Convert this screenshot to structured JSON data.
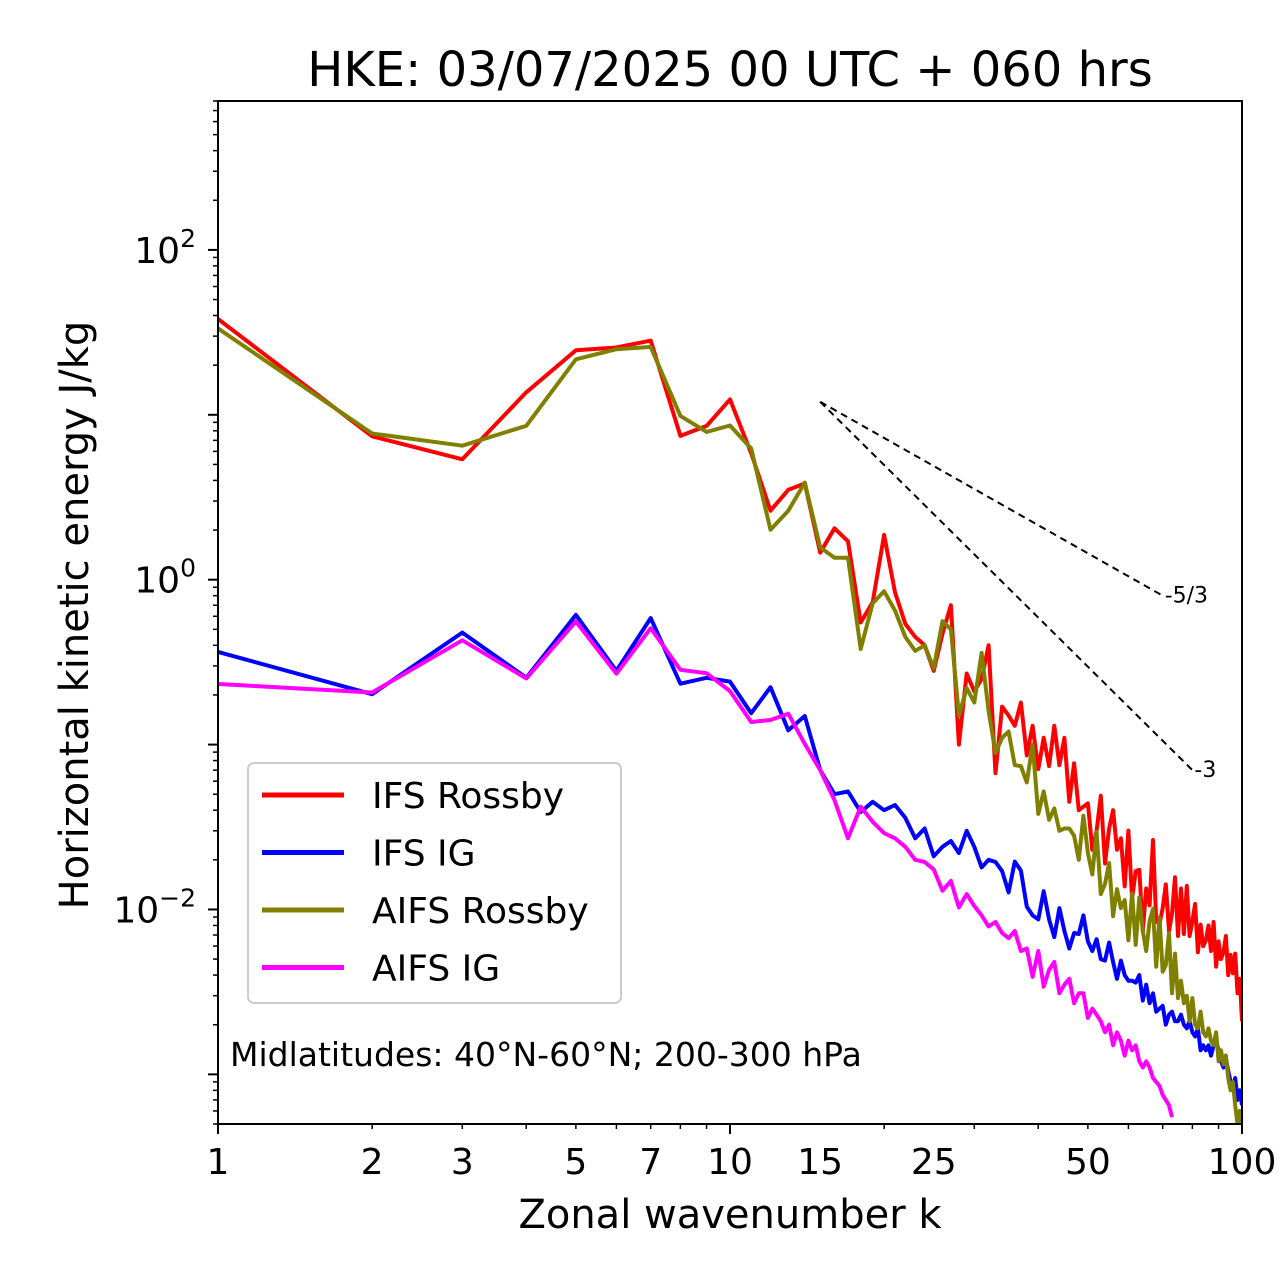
{
  "chart_data": {
    "type": "line",
    "title": "HKE: 03/07/2025 00 UTC + 060 hrs",
    "xlabel": "Zonal wavenumber k",
    "ylabel": "Horizontal kinetic energy J/kg",
    "x_scale": "log",
    "y_scale": "log",
    "xlim": [
      1,
      100
    ],
    "ylim": [
      0.0005,
      800
    ],
    "x_ticks": [
      {
        "value": 1,
        "label": "1"
      },
      {
        "value": 2,
        "label": "2"
      },
      {
        "value": 3,
        "label": "3"
      },
      {
        "value": 5,
        "label": "5"
      },
      {
        "value": 7,
        "label": "7"
      },
      {
        "value": 10,
        "label": "10"
      },
      {
        "value": 15,
        "label": "15"
      },
      {
        "value": 25,
        "label": "25"
      },
      {
        "value": 50,
        "label": "50"
      },
      {
        "value": 100,
        "label": "100"
      }
    ],
    "y_ticks": [
      {
        "value": 0.01,
        "base": "10",
        "exp": "−2"
      },
      {
        "value": 1,
        "base": "10",
        "exp": "0"
      },
      {
        "value": 100,
        "base": "10",
        "exp": "2"
      }
    ],
    "annotation": "Midlatitudes: 40°N-60°N; 200-300 hPa",
    "legend_position": "lower-left",
    "grid": false,
    "reference_slopes": [
      {
        "label": "-5/3",
        "x": [
          15,
          70
        ],
        "y": [
          12.0,
          0.8
        ]
      },
      {
        "label": "-3",
        "x": [
          15,
          80
        ],
        "y": [
          12.0,
          0.07
        ]
      }
    ],
    "series": [
      {
        "name": "IFS Rossby",
        "color": "#ff0000",
        "x": [
          1,
          2,
          3,
          4,
          5,
          6,
          7,
          8,
          9,
          10,
          11,
          12,
          13,
          14,
          15,
          16,
          17,
          18,
          19,
          20,
          21,
          22,
          23,
          24,
          25,
          26,
          27,
          28,
          29,
          30,
          31,
          32,
          33,
          34,
          35,
          36,
          37,
          38,
          39,
          40,
          41,
          42,
          43,
          44,
          45,
          46,
          47,
          48,
          49,
          50,
          51,
          52,
          53,
          54,
          55,
          56,
          57,
          58,
          59,
          60,
          61,
          62,
          63,
          64,
          65,
          66,
          67,
          68,
          69,
          70,
          71,
          72,
          73,
          74,
          75,
          76,
          77,
          78,
          79,
          80,
          81,
          82,
          83,
          84,
          85,
          86,
          87,
          88,
          89,
          90,
          91,
          92,
          93,
          94,
          95,
          96,
          97,
          98,
          99,
          100
        ],
        "y": [
          38.1,
          7.41,
          5.37,
          13.7,
          24.6,
          25.6,
          28.2,
          7.45,
          8.57,
          12.4,
          5.84,
          2.62,
          3.51,
          3.83,
          1.46,
          2.05,
          1.71,
          0.55,
          0.73,
          1.87,
          0.84,
          0.54,
          0.45,
          0.4,
          0.28,
          0.47,
          0.7,
          0.1,
          0.27,
          0.21,
          0.25,
          0.4,
          0.067,
          0.17,
          0.15,
          0.13,
          0.18,
          0.086,
          0.13,
          0.071,
          0.11,
          0.074,
          0.13,
          0.075,
          0.11,
          0.045,
          0.077,
          0.04,
          0.042,
          0.044,
          0.023,
          0.03,
          0.049,
          0.019,
          0.031,
          0.04,
          0.023,
          0.027,
          0.0138,
          0.0301,
          0.0116,
          0.0171,
          0.0174,
          0.0074,
          0.0134,
          0.0106,
          0.0264,
          0.0085,
          0.0082,
          0.0102,
          0.0142,
          0.0074,
          0.0094,
          0.0157,
          0.0069,
          0.0134,
          0.0071,
          0.0139,
          0.0069,
          0.0085,
          0.0108,
          0.0055,
          0.0081,
          0.006,
          0.0065,
          0.008,
          0.0056,
          0.0084,
          0.0045,
          0.0064,
          0.005,
          0.0055,
          0.0069,
          0.004,
          0.0053,
          0.0041,
          0.0054,
          0.0031,
          0.0038,
          0.0021
        ]
      },
      {
        "name": "IFS IG",
        "color": "#0000ff",
        "x": [
          1,
          2,
          3,
          4,
          5,
          6,
          7,
          8,
          9,
          10,
          11,
          12,
          13,
          14,
          15,
          16,
          17,
          18,
          19,
          20,
          21,
          22,
          23,
          24,
          25,
          26,
          27,
          28,
          29,
          30,
          31,
          32,
          33,
          34,
          35,
          36,
          37,
          38,
          39,
          40,
          41,
          42,
          43,
          44,
          45,
          46,
          47,
          48,
          49,
          50,
          51,
          52,
          53,
          54,
          55,
          56,
          57,
          58,
          59,
          60,
          61,
          62,
          63,
          64,
          65,
          66,
          67,
          68,
          69,
          70,
          71,
          72,
          73,
          74,
          75,
          76,
          77,
          78,
          79,
          80,
          81,
          82,
          83,
          84,
          85,
          86,
          87,
          88,
          89,
          90,
          91,
          92,
          93,
          94,
          95,
          96,
          97,
          98,
          99,
          100
        ],
        "y": [
          0.365,
          0.202,
          0.478,
          0.254,
          0.612,
          0.28,
          0.585,
          0.234,
          0.254,
          0.241,
          0.155,
          0.223,
          0.122,
          0.149,
          0.07,
          0.05,
          0.052,
          0.039,
          0.045,
          0.04,
          0.043,
          0.036,
          0.027,
          0.031,
          0.021,
          0.024,
          0.026,
          0.022,
          0.03,
          0.024,
          0.018,
          0.02,
          0.0194,
          0.0171,
          0.0127,
          0.0195,
          0.0172,
          0.0104,
          0.0092,
          0.0087,
          0.0129,
          0.0087,
          0.0068,
          0.0102,
          0.0074,
          0.0058,
          0.0072,
          0.0071,
          0.0092,
          0.0064,
          0.0056,
          0.0066,
          0.005,
          0.0049,
          0.0063,
          0.0048,
          0.0038,
          0.0049,
          0.004,
          0.0037,
          0.0037,
          0.0036,
          0.004,
          0.0028,
          0.0035,
          0.0027,
          0.0031,
          0.0024,
          0.0025,
          0.0026,
          0.002,
          0.0023,
          0.0024,
          0.0021,
          0.0021,
          0.0023,
          0.002,
          0.0019,
          0.0021,
          0.0018,
          0.0017,
          0.0019,
          0.0014,
          0.0015,
          0.0014,
          0.0015,
          0.0013,
          0.0015,
          0.0016,
          0.0014,
          0.0012,
          0.0011,
          0.00125,
          0.00105,
          0.0009,
          0.00085,
          0.00095,
          0.0007,
          0.0008,
          0.00065
        ]
      },
      {
        "name": "AIFS Rossby",
        "color": "#808000",
        "x": [
          1,
          2,
          3,
          4,
          5,
          6,
          7,
          8,
          9,
          10,
          11,
          12,
          13,
          14,
          15,
          16,
          17,
          18,
          19,
          20,
          21,
          22,
          23,
          24,
          25,
          26,
          27,
          28,
          29,
          30,
          31,
          32,
          33,
          34,
          35,
          36,
          37,
          38,
          39,
          40,
          41,
          42,
          43,
          44,
          45,
          46,
          47,
          48,
          49,
          50,
          51,
          52,
          53,
          54,
          55,
          56,
          57,
          58,
          59,
          60,
          61,
          62,
          63,
          64,
          65,
          66,
          67,
          68,
          69,
          70,
          71,
          72,
          73,
          74,
          75,
          76,
          77,
          78,
          79,
          80,
          81,
          82,
          83,
          84,
          85,
          86,
          87,
          88,
          89,
          90,
          91,
          92,
          93,
          94,
          95,
          96,
          97,
          98,
          99,
          100
        ],
        "y": [
          33.4,
          7.7,
          6.5,
          8.58,
          21.7,
          25.0,
          25.8,
          9.85,
          7.88,
          8.61,
          6.25,
          2.01,
          2.62,
          3.88,
          1.57,
          1.36,
          1.36,
          0.38,
          0.72,
          0.85,
          0.65,
          0.45,
          0.37,
          0.4,
          0.29,
          0.56,
          0.5,
          0.15,
          0.22,
          0.18,
          0.36,
          0.16,
          0.089,
          0.11,
          0.12,
          0.075,
          0.074,
          0.059,
          0.1,
          0.038,
          0.052,
          0.035,
          0.041,
          0.03,
          0.031,
          0.031,
          0.028,
          0.02,
          0.037,
          0.022,
          0.0163,
          0.0296,
          0.0124,
          0.0143,
          0.0191,
          0.0091,
          0.0133,
          0.0102,
          0.0114,
          0.0065,
          0.0125,
          0.0061,
          0.0118,
          0.0074,
          0.0056,
          0.0085,
          0.0101,
          0.0045,
          0.0089,
          0.0042,
          0.0046,
          0.0072,
          0.0031,
          0.0054,
          0.0029,
          0.0037,
          0.0027,
          0.003,
          0.0021,
          0.0029,
          0.002,
          0.0019,
          0.0024,
          0.0018,
          0.0017,
          0.0019,
          0.0016,
          0.0015,
          0.0018,
          0.0012,
          0.0014,
          0.00115,
          0.0013,
          0.00095,
          0.0008,
          0.0009,
          0.00065,
          0.0005,
          0.0006,
          0.0005
        ]
      },
      {
        "name": "AIFS IG",
        "color": "#ff00ff",
        "x": [
          1,
          2,
          3,
          4,
          5,
          6,
          7,
          8,
          9,
          10,
          11,
          12,
          13,
          14,
          15,
          16,
          17,
          18,
          19,
          20,
          21,
          22,
          23,
          24,
          25,
          26,
          27,
          28,
          29,
          30,
          31,
          32,
          33,
          34,
          35,
          36,
          37,
          38,
          39,
          40,
          41,
          42,
          43,
          44,
          45,
          46,
          47,
          48,
          49,
          50,
          51,
          52,
          53,
          54,
          55,
          56,
          57,
          58,
          59,
          60,
          61,
          62,
          63,
          64,
          65,
          66,
          67,
          68,
          69,
          70,
          71,
          72,
          73
        ],
        "y": [
          0.233,
          0.207,
          0.429,
          0.252,
          0.558,
          0.269,
          0.508,
          0.284,
          0.271,
          0.211,
          0.137,
          0.141,
          0.154,
          0.101,
          0.07,
          0.046,
          0.027,
          0.042,
          0.034,
          0.029,
          0.027,
          0.024,
          0.02,
          0.0194,
          0.0175,
          0.013,
          0.0149,
          0.0103,
          0.0124,
          0.0105,
          0.0092,
          0.0079,
          0.0084,
          0.0072,
          0.0067,
          0.0074,
          0.0056,
          0.0058,
          0.0039,
          0.0056,
          0.0034,
          0.0043,
          0.0048,
          0.0031,
          0.0035,
          0.0038,
          0.0027,
          0.0031,
          0.0031,
          0.0022,
          0.0025,
          0.0023,
          0.0021,
          0.0018,
          0.002,
          0.0015,
          0.0018,
          0.0016,
          0.0013,
          0.0016,
          0.0014,
          0.0015,
          0.0012,
          0.0011,
          0.0012,
          0.0011,
          0.00095,
          0.0009,
          0.00085,
          0.00075,
          0.0007,
          0.00065,
          0.00055
        ]
      }
    ]
  }
}
